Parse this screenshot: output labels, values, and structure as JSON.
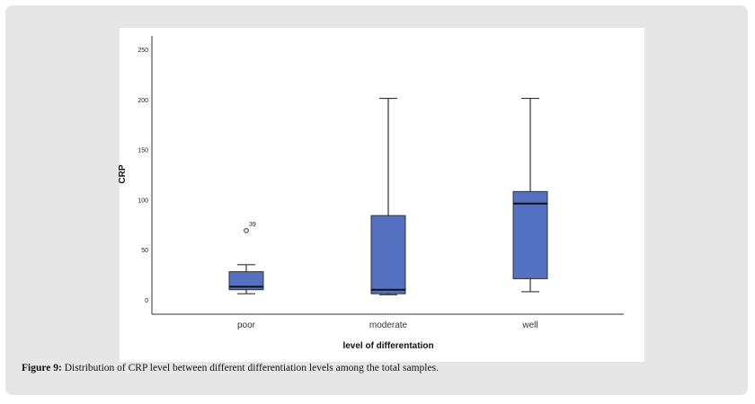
{
  "chart_data": {
    "type": "box",
    "xlabel": "level of differentation",
    "ylabel": "CRP",
    "ylim": [
      0,
      250
    ],
    "yticks": [
      0,
      50,
      100,
      150,
      200,
      250
    ],
    "categories": [
      "poor",
      "moderate",
      "well"
    ],
    "boxes": [
      {
        "category": "poor",
        "min": 7,
        "q1": 11,
        "median": 14,
        "q3": 29,
        "max": 36,
        "outliers": [
          {
            "value": 70,
            "label": "39"
          }
        ]
      },
      {
        "category": "moderate",
        "min": 6,
        "q1": 7,
        "median": 11,
        "q3": 85,
        "max": 202,
        "outliers": []
      },
      {
        "category": "well",
        "min": 9,
        "q1": 22,
        "median": 97,
        "q3": 109,
        "max": 202,
        "outliers": []
      }
    ],
    "box_color": "#5470c0",
    "grid": false
  },
  "caption": {
    "label": "Figure 9:",
    "text": " Distribution of CRP level between different differentiation levels among the total samples."
  }
}
